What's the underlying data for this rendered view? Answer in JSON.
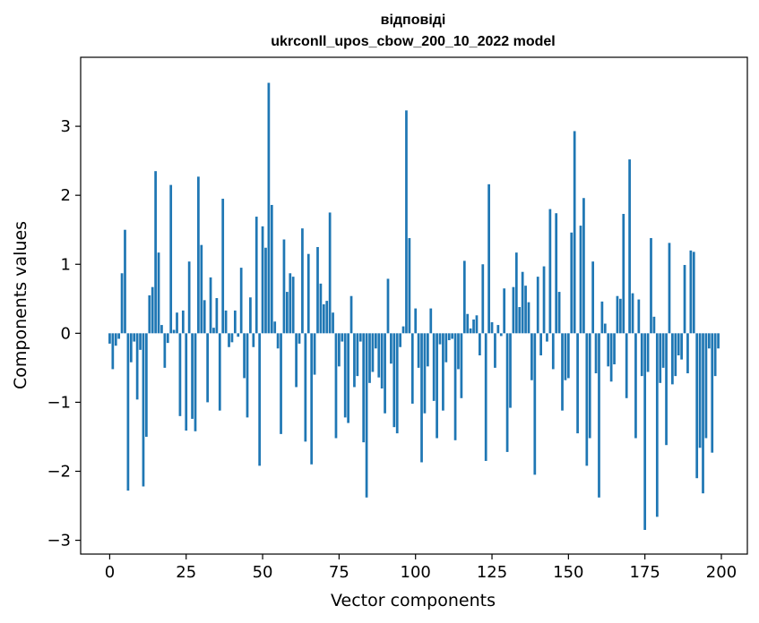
{
  "chart_data": {
    "type": "bar",
    "title": "відповіді",
    "subtitle": "ukrconll_upos_cbow_200_10_2022 model",
    "xlabel": "Vector components",
    "ylabel": "Components values",
    "xlim": [
      -9.5,
      208.5
    ],
    "ylim": [
      -3.2,
      4.0
    ],
    "xticks": [
      0,
      25,
      50,
      75,
      100,
      125,
      150,
      175,
      200
    ],
    "xtick_labels": [
      "0",
      "25",
      "50",
      "75",
      "100",
      "125",
      "150",
      "175",
      "200"
    ],
    "yticks": [
      -3,
      -2,
      -1,
      0,
      1,
      2,
      3
    ],
    "ytick_labels": [
      "−3",
      "−2",
      "−1",
      "0",
      "1",
      "2",
      "3"
    ],
    "bar_color": "#1f77b4",
    "grid": false,
    "x": [
      0,
      1,
      2,
      3,
      4,
      5,
      6,
      7,
      8,
      9,
      10,
      11,
      12,
      13,
      14,
      15,
      16,
      17,
      18,
      19,
      20,
      21,
      22,
      23,
      24,
      25,
      26,
      27,
      28,
      29,
      30,
      31,
      32,
      33,
      34,
      35,
      36,
      37,
      38,
      39,
      40,
      41,
      42,
      43,
      44,
      45,
      46,
      47,
      48,
      49,
      50,
      51,
      52,
      53,
      54,
      55,
      56,
      57,
      58,
      59,
      60,
      61,
      62,
      63,
      64,
      65,
      66,
      67,
      68,
      69,
      70,
      71,
      72,
      73,
      74,
      75,
      76,
      77,
      78,
      79,
      80,
      81,
      82,
      83,
      84,
      85,
      86,
      87,
      88,
      89,
      90,
      91,
      92,
      93,
      94,
      95,
      96,
      97,
      98,
      99,
      100,
      101,
      102,
      103,
      104,
      105,
      106,
      107,
      108,
      109,
      110,
      111,
      112,
      113,
      114,
      115,
      116,
      117,
      118,
      119,
      120,
      121,
      122,
      123,
      124,
      125,
      126,
      127,
      128,
      129,
      130,
      131,
      132,
      133,
      134,
      135,
      136,
      137,
      138,
      139,
      140,
      141,
      142,
      143,
      144,
      145,
      146,
      147,
      148,
      149,
      150,
      151,
      152,
      153,
      154,
      155,
      156,
      157,
      158,
      159,
      160,
      161,
      162,
      163,
      164,
      165,
      166,
      167,
      168,
      169,
      170,
      171,
      172,
      173,
      174,
      175,
      176,
      177,
      178,
      179,
      180,
      181,
      182,
      183,
      184,
      185,
      186,
      187,
      188,
      189,
      190,
      191,
      192,
      193,
      194,
      195,
      196,
      197,
      198,
      199
    ],
    "values": [
      -0.15,
      -0.52,
      -0.18,
      -0.08,
      0.87,
      1.5,
      -2.28,
      -0.42,
      -0.12,
      -0.96,
      -0.24,
      -2.22,
      -1.5,
      0.55,
      0.67,
      2.35,
      1.17,
      0.12,
      -0.5,
      -0.14,
      2.15,
      0.05,
      0.3,
      -1.2,
      0.33,
      -1.41,
      1.04,
      -1.24,
      -1.42,
      2.27,
      1.28,
      0.48,
      -1.0,
      0.81,
      0.08,
      0.51,
      -1.12,
      1.95,
      0.33,
      -0.2,
      -0.13,
      0.33,
      -0.05,
      0.95,
      -0.65,
      -1.22,
      0.52,
      -0.2,
      1.69,
      -1.92,
      1.55,
      1.24,
      3.63,
      1.86,
      0.17,
      -0.22,
      -1.46,
      1.36,
      0.6,
      0.87,
      0.82,
      -0.78,
      -0.15,
      1.52,
      -1.57,
      1.15,
      -1.9,
      -0.6,
      1.25,
      0.72,
      0.42,
      0.47,
      1.75,
      0.3,
      -1.52,
      -0.48,
      -0.12,
      -1.22,
      -1.3,
      0.54,
      -0.78,
      -0.62,
      -0.12,
      -1.58,
      -2.38,
      -0.72,
      -0.56,
      -0.22,
      -0.64,
      -0.8,
      -1.16,
      0.79,
      -0.44,
      -1.36,
      -1.45,
      -0.2,
      0.1,
      3.23,
      1.38,
      -1.02,
      0.36,
      -0.5,
      -1.87,
      -1.16,
      -0.48,
      0.36,
      -0.98,
      -1.52,
      -0.16,
      -1.12,
      -0.42,
      -0.1,
      -0.08,
      -1.55,
      -0.52,
      -0.94,
      1.05,
      0.28,
      0.07,
      0.2,
      0.26,
      -0.32,
      1.0,
      -1.85,
      2.16,
      0.16,
      -0.5,
      0.12,
      -0.04,
      0.65,
      -1.72,
      -1.08,
      0.67,
      1.17,
      0.38,
      0.89,
      0.69,
      0.45,
      -0.68,
      -2.05,
      0.82,
      -0.32,
      0.97,
      -0.12,
      1.8,
      -0.52,
      1.74,
      0.6,
      -1.12,
      -0.68,
      -0.65,
      1.46,
      2.93,
      -1.45,
      1.56,
      1.96,
      -1.92,
      -1.52,
      1.04,
      -0.58,
      -2.38,
      0.46,
      0.14,
      -0.48,
      -0.7,
      -0.45,
      0.54,
      0.5,
      1.73,
      -0.94,
      2.52,
      0.58,
      -1.52,
      0.49,
      -0.62,
      -2.85,
      -0.56,
      1.38,
      0.24,
      -2.66,
      -0.72,
      -0.5,
      -1.62,
      1.31,
      -0.74,
      -0.62,
      -0.32,
      -0.38,
      0.99,
      -0.58,
      1.2,
      1.18,
      -2.1,
      -1.66,
      -2.32,
      -1.52,
      -0.22,
      -1.73,
      -0.62,
      -0.22
    ]
  }
}
